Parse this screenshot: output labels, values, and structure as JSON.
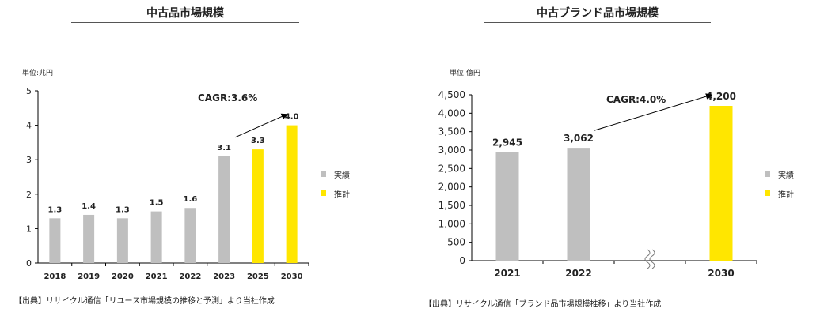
{
  "colors": {
    "actual": "#bfbfbf",
    "forecast": "#ffe600",
    "axis": "#000000"
  },
  "chart_data": [
    {
      "type": "bar",
      "title": "中古品市場規模",
      "unit_label": "単位:兆円",
      "categories": [
        "2018",
        "2019",
        "2020",
        "2021",
        "2022",
        "2023",
        "2025",
        "2030"
      ],
      "values": [
        1.3,
        1.4,
        1.3,
        1.5,
        1.6,
        3.1,
        3.3,
        4.0
      ],
      "value_labels": [
        "1.3",
        "1.4",
        "1.3",
        "1.5",
        "1.6",
        "3.1",
        "3.3",
        "4.0"
      ],
      "bar_types": [
        "actual",
        "actual",
        "actual",
        "actual",
        "actual",
        "actual",
        "forecast",
        "forecast"
      ],
      "yticks": [
        "0",
        "1",
        "2",
        "3",
        "4",
        "5"
      ],
      "ylim": [
        0,
        5
      ],
      "grid": false,
      "legend": {
        "position": "right",
        "items": [
          {
            "label": "実績",
            "type": "actual"
          },
          {
            "label": "推計",
            "type": "forecast"
          }
        ]
      },
      "annotation": {
        "text": "CAGR:3.6%",
        "from_category": "2023",
        "to_category": "2030"
      },
      "source": "【出典】リサイクル通信「リユース市場規模の推移と予測」より当社作成"
    },
    {
      "type": "bar",
      "title": "中古ブランド品市場規模",
      "unit_label": "単位:億円",
      "categories": [
        "2021",
        "2022",
        "",
        "2030"
      ],
      "values": [
        2945,
        3062,
        null,
        4200
      ],
      "value_labels": [
        "2,945",
        "3,062",
        "",
        "4,200"
      ],
      "bar_types": [
        "actual",
        "actual",
        "break",
        "forecast"
      ],
      "yticks": [
        "0",
        "500",
        "1,000",
        "1,500",
        "2,000",
        "2,500",
        "3,000",
        "3,500",
        "4,000",
        "4,500"
      ],
      "ylim": [
        0,
        4500
      ],
      "grid": false,
      "axis_break": true,
      "legend": {
        "position": "right",
        "items": [
          {
            "label": "実績",
            "type": "actual"
          },
          {
            "label": "推計",
            "type": "forecast"
          }
        ]
      },
      "annotation": {
        "text": "CAGR:4.0%",
        "from_category": "2022",
        "to_category": "2030"
      },
      "source": "【出典】リサイクル通信「ブランド品市場規模推移」より当社作成"
    }
  ]
}
